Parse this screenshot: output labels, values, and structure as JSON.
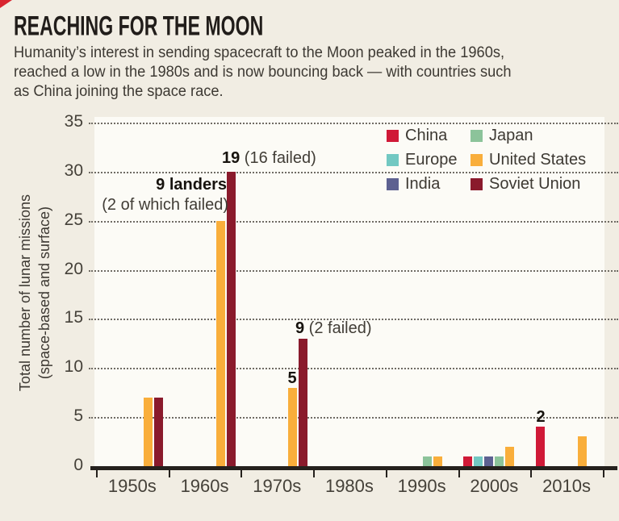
{
  "header": {
    "title": "REACHING FOR THE MOON",
    "subtitle_lines": [
      "Humanity’s interest in sending spacecraft to the Moon peaked in the 1960s,",
      "reached a low in the 1980s and is now bouncing back — with countries such",
      "as China joining the space race."
    ]
  },
  "accent_color": "#d8242f",
  "legend": {
    "items": [
      {
        "label": "China",
        "color": "#d01937"
      },
      {
        "label": "Japan",
        "color": "#8cc39a"
      },
      {
        "label": "Europe",
        "color": "#72c8c2"
      },
      {
        "label": "United States",
        "color": "#f9ae3b"
      },
      {
        "label": "India",
        "color": "#5d6191"
      },
      {
        "label": "Soviet Union",
        "color": "#8a1a2c"
      }
    ]
  },
  "chart_data": {
    "type": "bar",
    "title": "REACHING FOR THE MOON",
    "categories": [
      "1950s",
      "1960s",
      "1970s",
      "1980s",
      "1990s",
      "2000s",
      "2010s"
    ],
    "series": [
      {
        "name": "China",
        "color": "#d01937",
        "values": [
          0,
          0,
          0,
          0,
          0,
          1,
          4
        ]
      },
      {
        "name": "Europe",
        "color": "#72c8c2",
        "values": [
          0,
          0,
          0,
          0,
          0,
          1,
          0
        ]
      },
      {
        "name": "India",
        "color": "#5d6191",
        "values": [
          0,
          0,
          0,
          0,
          0,
          1,
          0
        ]
      },
      {
        "name": "Japan",
        "color": "#8cc39a",
        "values": [
          0,
          0,
          0,
          0,
          1,
          1,
          0
        ]
      },
      {
        "name": "United States",
        "color": "#f9ae3b",
        "values": [
          7,
          25,
          8,
          0,
          1,
          2,
          3
        ]
      },
      {
        "name": "Soviet Union",
        "color": "#8a1a2c",
        "values": [
          7,
          30,
          13,
          0,
          0,
          0,
          0
        ]
      }
    ],
    "ylabel": "Total number of lunar missions (space-based and surface)",
    "ylabel_lines": [
      "Total number of lunar missions",
      "(space-based and surface)"
    ],
    "ylim": [
      0,
      35
    ],
    "yticks": [
      0,
      5,
      10,
      15,
      20,
      25,
      30,
      35
    ],
    "grid": "dotted-horizontal",
    "legend_position": "top-right-inside",
    "annotations": [
      {
        "bold": "9 landers",
        "rest": ""
      },
      {
        "bold": "",
        "rest": "(2 of which failed)"
      },
      {
        "bold": "19",
        "rest": " (16 failed)"
      },
      {
        "bold": "9",
        "rest": " (2 failed)"
      },
      {
        "bold": "5",
        "rest": ""
      },
      {
        "bold": "2",
        "rest": ""
      }
    ]
  }
}
